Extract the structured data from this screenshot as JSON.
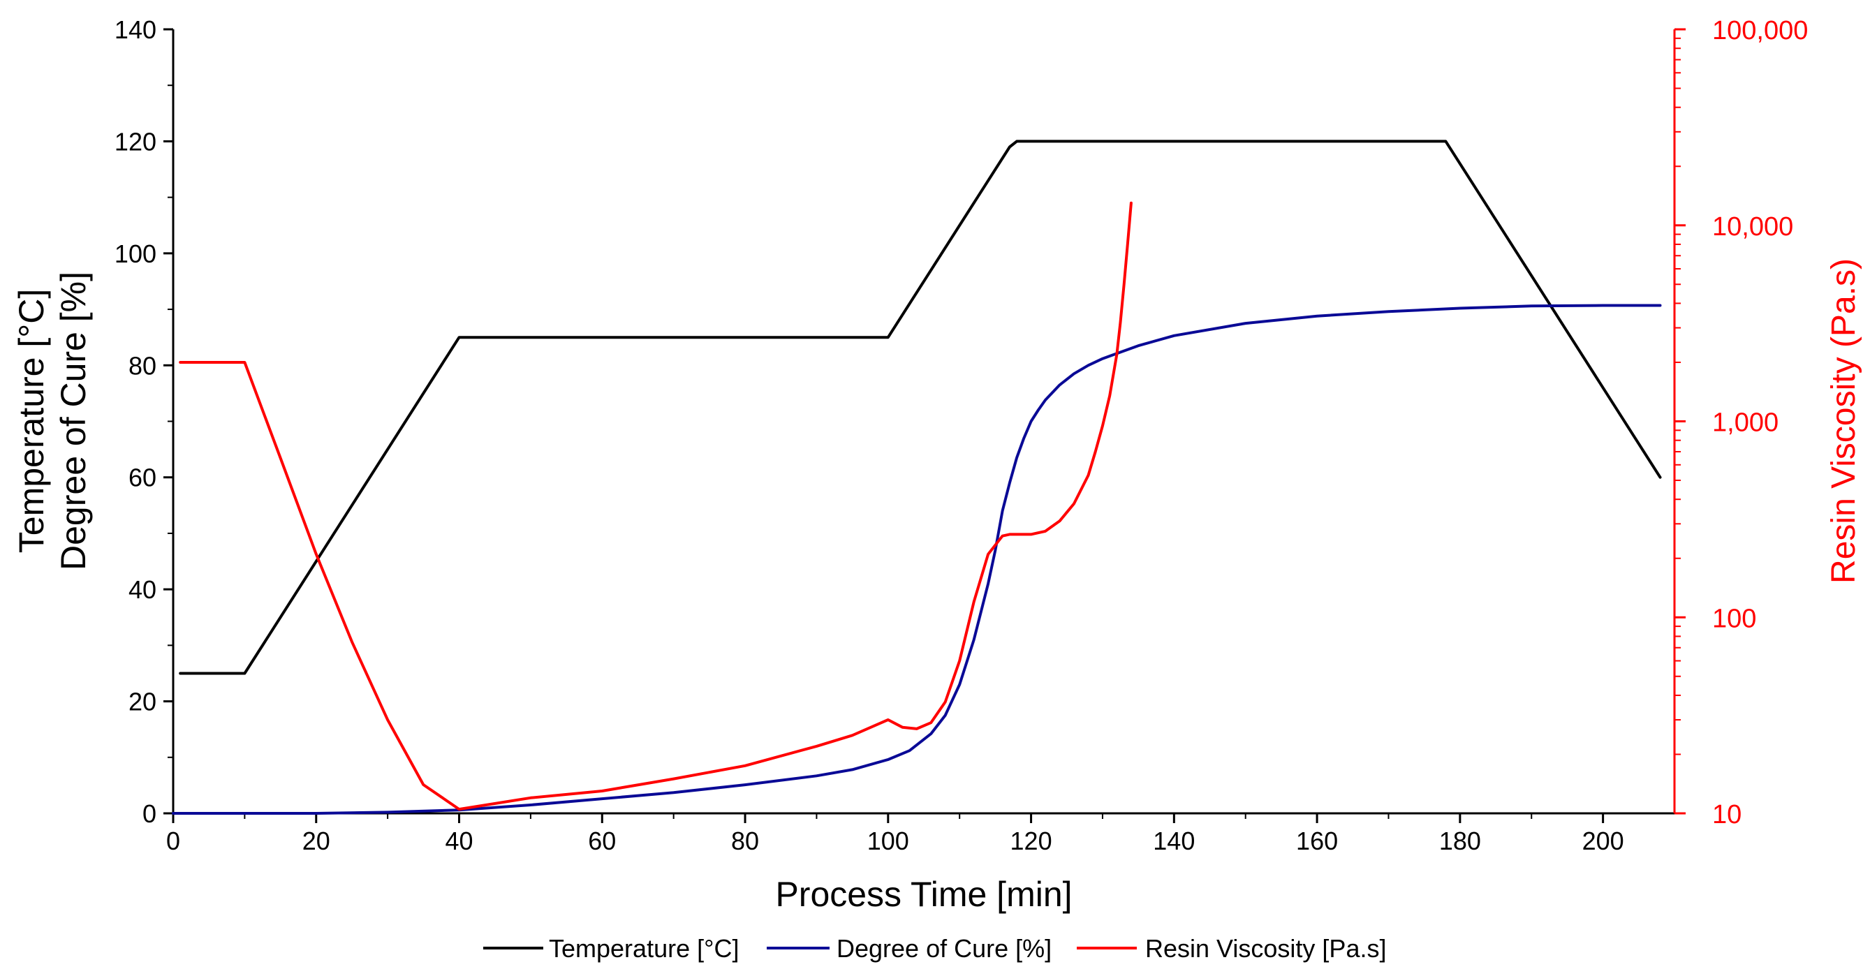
{
  "chart_data": {
    "type": "line",
    "xlabel": "Process Time [min]",
    "ylabel_lines": [
      "Temperature [°C]",
      "Degree of Cure [%]"
    ],
    "y2label": "Resin Viscosity (Pa.s)",
    "xlim": [
      0,
      210
    ],
    "ylim": [
      0,
      140
    ],
    "y2lim": [
      10,
      100000
    ],
    "y2scale": "log",
    "x_ticks": [
      "0",
      "20",
      "40",
      "60",
      "80",
      "100",
      "120",
      "140",
      "160",
      "180",
      "200"
    ],
    "y_ticks": [
      "0",
      "20",
      "40",
      "60",
      "80",
      "100",
      "120",
      "140"
    ],
    "y2_ticks": [
      "10",
      "100",
      "1,000",
      "10,000",
      "100,000"
    ],
    "legend_position": "bottom",
    "colors": {
      "temperature": "#000000",
      "cure": "#0a0a96",
      "viscosity": "#ff0000",
      "axis_right": "#ff0000"
    },
    "series": [
      {
        "name": "Temperature [°C]",
        "axis": "left",
        "x": [
          1,
          10,
          40,
          100,
          117,
          118,
          178,
          208
        ],
        "y": [
          25,
          25,
          85,
          85,
          119,
          120,
          120,
          60
        ]
      },
      {
        "name": "Degree of Cure [%]",
        "axis": "left",
        "x": [
          0,
          20,
          30,
          40,
          50,
          60,
          70,
          80,
          90,
          95,
          100,
          103,
          106,
          108,
          110,
          112,
          114,
          115,
          116,
          117,
          118,
          119,
          120,
          121,
          122,
          124,
          126,
          128,
          130,
          135,
          140,
          150,
          160,
          170,
          180,
          190,
          200,
          208
        ],
        "y": [
          0,
          0,
          0.2,
          0.6,
          1.5,
          2.6,
          3.7,
          5.1,
          6.7,
          7.8,
          9.6,
          11.2,
          14.2,
          17.5,
          23,
          31,
          41,
          47,
          54,
          59,
          63.5,
          67,
          70,
          72,
          73.8,
          76.5,
          78.5,
          80,
          81.2,
          83.5,
          85.3,
          87.5,
          88.8,
          89.6,
          90.2,
          90.6,
          90.7,
          90.7
        ]
      },
      {
        "name": "Resin Viscosity [Pa.s]",
        "axis": "right",
        "x": [
          1,
          10,
          15,
          20,
          25,
          30,
          35,
          40,
          50,
          60,
          70,
          80,
          90,
          95,
          100,
          102,
          104,
          106,
          108,
          110,
          112,
          114,
          116,
          117,
          118,
          120,
          122,
          124,
          126,
          128,
          129,
          130,
          131,
          132,
          132.5,
          133,
          133.5,
          134
        ],
        "y": [
          2000,
          2000,
          650,
          210,
          75,
          30,
          14,
          10.5,
          12,
          13,
          15,
          17.5,
          22,
          25,
          30,
          27.5,
          27,
          29,
          37,
          60,
          120,
          210,
          260,
          265,
          265,
          265,
          275,
          310,
          380,
          530,
          700,
          950,
          1350,
          2200,
          3200,
          5000,
          8000,
          13000
        ]
      }
    ]
  }
}
